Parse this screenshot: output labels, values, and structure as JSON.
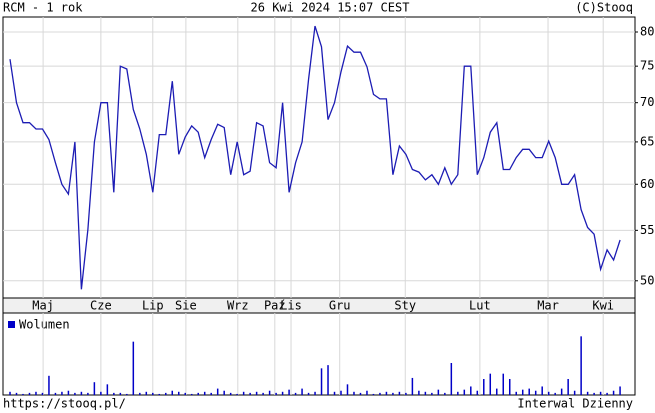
{
  "chart_data": {
    "type": "line",
    "title": "RCM - 1 rok",
    "subtitle": "26 Kwi 2024 15:07 CEST",
    "credit": "(C)Stooq",
    "footer_left": "https://stooq.pl/",
    "footer_right": "Interwal Dzienny",
    "log_y": true,
    "grid": true,
    "color": "#1c1cb4",
    "xlim": [
      -1.08,
      96.3
    ],
    "xticks": [
      {
        "value": 5.1,
        "label": "Maj"
      },
      {
        "value": 14.0,
        "label": "Cze"
      },
      {
        "value": 22.0,
        "label": "Lip"
      },
      {
        "value": 27.1,
        "label": "Sie"
      },
      {
        "value": 35.1,
        "label": "Wrz"
      },
      {
        "value": 40.8,
        "label": "Paź"
      },
      {
        "value": 43.3,
        "label": "Lis"
      },
      {
        "value": 50.8,
        "label": "Gru"
      },
      {
        "value": 60.9,
        "label": "Sty"
      },
      {
        "value": 72.4,
        "label": "Lut"
      },
      {
        "value": 82.9,
        "label": "Mar"
      },
      {
        "value": 91.4,
        "label": "Kwi"
      }
    ],
    "ylim": [
      48.4,
      82.3
    ],
    "yticks": [
      50,
      55,
      60,
      65,
      70,
      75,
      80
    ],
    "values": [
      76.0,
      70.0,
      67.4,
      67.4,
      66.6,
      66.6,
      65.3,
      62.5,
      60.0,
      58.9,
      65.0,
      49.2,
      55.1,
      65.0,
      70.0,
      70.0,
      59.1,
      75.0,
      74.6,
      69.1,
      66.6,
      63.5,
      59.1,
      65.9,
      65.9,
      72.9,
      63.5,
      65.6,
      67.0,
      66.2,
      63.1,
      65.3,
      67.2,
      66.8,
      61.1,
      65.0,
      61.1,
      61.5,
      67.4,
      67.0,
      62.5,
      61.9,
      70.0,
      59.1,
      62.5,
      65.0,
      73.2,
      80.9,
      77.8,
      67.8,
      70.0,
      74.2,
      77.9,
      77.0,
      77.0,
      74.9,
      71.1,
      70.5,
      70.5,
      61.1,
      64.5,
      63.5,
      61.7,
      61.4,
      60.5,
      61.1,
      60.0,
      61.9,
      60.0,
      61.1,
      75.0,
      75.0,
      61.1,
      63.1,
      66.2,
      67.4,
      61.7,
      61.7,
      63.1,
      64.1,
      64.1,
      63.1,
      63.1,
      65.1,
      63.1,
      60.0,
      60.0,
      61.1,
      57.2,
      55.3,
      54.6,
      51.1,
      53.0,
      52.0,
      54.0
    ],
    "volume": {
      "name": "Wolumen",
      "color": "#0000c8",
      "ylim": [
        0,
        60
      ],
      "values": [
        3,
        2,
        1,
        2,
        3,
        2,
        18,
        2,
        3,
        4,
        2,
        3,
        2,
        12,
        3,
        10,
        2,
        2,
        1,
        50,
        2,
        3,
        2,
        1,
        2,
        4,
        3,
        2,
        1,
        2,
        3,
        2,
        6,
        4,
        2,
        1,
        3,
        2,
        3,
        2,
        4,
        2,
        3,
        5,
        2,
        6,
        2,
        3,
        25,
        28,
        3,
        4,
        10,
        3,
        2,
        4,
        1,
        2,
        3,
        2,
        3,
        2,
        16,
        4,
        3,
        2,
        5,
        2,
        30,
        3,
        5,
        8,
        4,
        15,
        20,
        6,
        20,
        15,
        3,
        5,
        6,
        4,
        8,
        3,
        2,
        6,
        15,
        4,
        55,
        3,
        2,
        3,
        2,
        4,
        8
      ]
    }
  }
}
